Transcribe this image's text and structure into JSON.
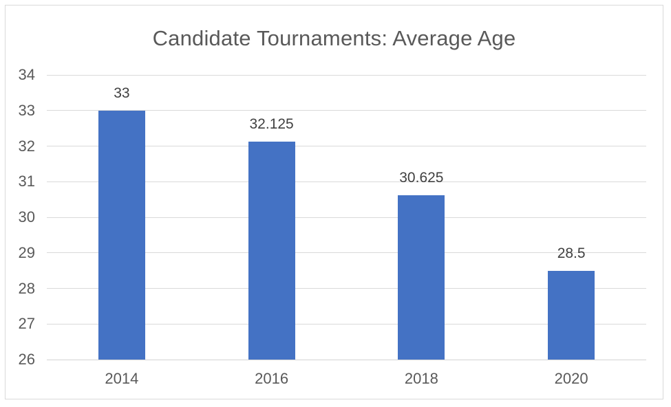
{
  "frame": {
    "background": "#FFFFFF",
    "border_color": "#D9D9D9"
  },
  "chart_data": {
    "type": "bar",
    "title": "Candidate Tournaments: Average Age",
    "categories": [
      "2014",
      "2016",
      "2018",
      "2020"
    ],
    "values": [
      33,
      32.125,
      30.625,
      28.5
    ],
    "data_labels": [
      "33",
      "32.125",
      "30.625",
      "28.5"
    ],
    "xlabel": "",
    "ylabel": "",
    "ylim": [
      26,
      34
    ],
    "yticks": [
      26,
      27,
      28,
      29,
      30,
      31,
      32,
      33,
      34
    ],
    "grid": true,
    "legend": false,
    "bar_color": "#4472C4",
    "gridline_color": "#D9D9D9",
    "axis_line_color": "#D3D3D3",
    "title_color": "#595959",
    "tick_label_color": "#595959",
    "data_label_color": "#404040"
  }
}
